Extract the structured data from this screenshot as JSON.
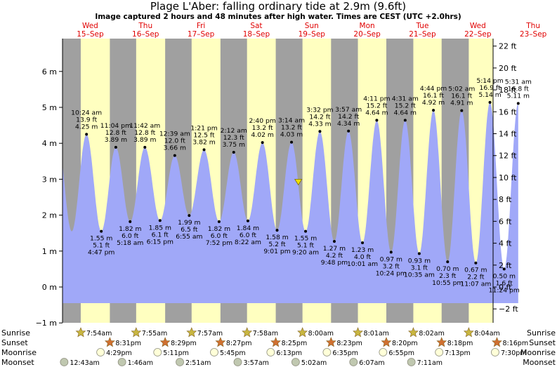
{
  "title": "Plage L'Aber: falling  ordinary tide at 2.9m (9.6ft)",
  "subtitle": "Image captured 2 hours and 48 minutes after high water. Times are CEST (UTC +2.0hrs)",
  "days": [
    {
      "dow": "Wed",
      "date": "15–Sep"
    },
    {
      "dow": "Thu",
      "date": "16–Sep"
    },
    {
      "dow": "Fri",
      "date": "17–Sep"
    },
    {
      "dow": "Sat",
      "date": "18–Sep"
    },
    {
      "dow": "Sun",
      "date": "19–Sep"
    },
    {
      "dow": "Mon",
      "date": "20–Sep"
    },
    {
      "dow": "Tue",
      "date": "21–Sep"
    },
    {
      "dow": "Wed",
      "date": "22–Sep"
    },
    {
      "dow": "Thu",
      "date": "23–Sep"
    }
  ],
  "colors": {
    "night": "#a0a0a0",
    "day": "#ffffc0",
    "tide": "#a0a8f8",
    "day_label": "#e00000",
    "sun_star": "#c8b640",
    "sunset_star": "#d07030",
    "moonrise": "#ffffd8",
    "moonset": "#c0c8b0",
    "current_marker": "#f0e000"
  },
  "chart_data": {
    "type": "area",
    "title": "Plage L'Aber: falling  ordinary tide at 2.9m (9.6ft)",
    "ylabel_left": "m",
    "ylabel_right": "ft",
    "ylim_m": [
      -1.2,
      6.8
    ],
    "yticks_m": [
      -1,
      0,
      1,
      2,
      3,
      4,
      5,
      6
    ],
    "yticks_ft": [
      -2,
      0,
      2,
      4,
      6,
      8,
      10,
      12,
      14,
      16,
      18,
      20,
      22
    ],
    "current_level_m": 2.9,
    "current_time_h": 245.3,
    "x_start_h": 0,
    "x_end_h": 262,
    "tides": [
      {
        "t_h": 10.4,
        "m": 4.25,
        "time": "10:24 am",
        "ft": "13.9 ft",
        "val": "4.25 m",
        "high": true
      },
      {
        "t_h": 16.8,
        "m": 1.55,
        "time": "4:47 pm",
        "ft": "5.1 ft",
        "val": "1.55 m",
        "high": false
      },
      {
        "t_h": 23.1,
        "m": 3.89,
        "time": "11:04 pm",
        "ft": "12.8 ft",
        "val": "3.89 m",
        "high": true
      },
      {
        "t_h": 29.3,
        "m": 1.82,
        "time": "5:18 am",
        "ft": "6.0 ft",
        "val": "1.82 m",
        "high": false
      },
      {
        "t_h": 35.7,
        "m": 3.89,
        "time": "11:42 am",
        "ft": "12.8 ft",
        "val": "3.89 m",
        "high": true
      },
      {
        "t_h": 42.25,
        "m": 1.85,
        "time": "6:15 pm",
        "ft": "6.1 ft",
        "val": "1.85 m",
        "high": false
      },
      {
        "t_h": 48.65,
        "m": 3.66,
        "time": "12:39 am",
        "ft": "12.0 ft",
        "val": "3.66 m",
        "high": true
      },
      {
        "t_h": 54.9,
        "m": 1.99,
        "time": "6:55 am",
        "ft": "6.5 ft",
        "val": "1.99 m",
        "high": false
      },
      {
        "t_h": 61.35,
        "m": 3.82,
        "time": "1:21 pm",
        "ft": "12.5 ft",
        "val": "3.82 m",
        "high": true
      },
      {
        "t_h": 67.85,
        "m": 1.82,
        "time": "7:52 pm",
        "ft": "6.0 ft",
        "val": "1.82 m",
        "high": false
      },
      {
        "t_h": 74.2,
        "m": 3.75,
        "time": "2:12 am",
        "ft": "12.3 ft",
        "val": "3.75 m",
        "high": true
      },
      {
        "t_h": 80.35,
        "m": 1.84,
        "time": "8:22 am",
        "ft": "6.0 ft",
        "val": "1.84 m",
        "high": false
      },
      {
        "t_h": 86.65,
        "m": 4.02,
        "time": "2:40 pm",
        "ft": "13.2 ft",
        "val": "4.02 m",
        "high": true
      },
      {
        "t_h": 93.0,
        "m": 1.58,
        "time": "9:01 pm",
        "ft": "5.2 ft",
        "val": "1.58 m",
        "high": false
      },
      {
        "t_h": 99.25,
        "m": 4.03,
        "time": "3:14 am",
        "ft": "13.2 ft",
        "val": "4.03 m",
        "high": true
      },
      {
        "t_h": 105.35,
        "m": 1.55,
        "time": "9:20 am",
        "ft": "5.1 ft",
        "val": "1.55 m",
        "high": false
      },
      {
        "t_h": 111.55,
        "m": 4.33,
        "time": "3:32 pm",
        "ft": "14.2 ft",
        "val": "4.33 m",
        "high": true
      },
      {
        "t_h": 117.8,
        "m": 1.27,
        "time": "9:48 pm",
        "ft": "4.2 ft",
        "val": "1.27 m",
        "high": false
      },
      {
        "t_h": 123.95,
        "m": 4.34,
        "time": "3:57 am",
        "ft": "14.2 ft",
        "val": "4.34 m",
        "high": true
      },
      {
        "t_h": 130.0,
        "m": 1.23,
        "time": "10:01 am",
        "ft": "4.0 ft",
        "val": "1.23 m",
        "high": false
      },
      {
        "t_h": 136.2,
        "m": 4.64,
        "time": "4:11 pm",
        "ft": "15.2 ft",
        "val": "4.64 m",
        "high": true
      },
      {
        "t_h": 142.4,
        "m": 0.97,
        "time": "10:24 pm",
        "ft": "3.2 ft",
        "val": "0.97 m",
        "high": false
      },
      {
        "t_h": 148.5,
        "m": 4.64,
        "time": "4:31 am",
        "ft": "15.2 ft",
        "val": "4.64 m",
        "high": true
      },
      {
        "t_h": 154.6,
        "m": 0.93,
        "time": "10:35 am",
        "ft": "3.1 ft",
        "val": "0.93 m",
        "high": false
      },
      {
        "t_h": 160.75,
        "m": 4.92,
        "time": "4:44 pm",
        "ft": "16.1 ft",
        "val": "4.92 m",
        "high": true
      },
      {
        "t_h": 166.9,
        "m": 0.7,
        "time": "10:55 pm",
        "ft": "2.3 ft",
        "val": "0.70 m",
        "high": false
      },
      {
        "t_h": 173.0,
        "m": 4.91,
        "time": "5:02 am",
        "ft": "16.1 ft",
        "val": "4.91 m",
        "high": true
      },
      {
        "t_h": 179.1,
        "m": 0.67,
        "time": "11:07 am",
        "ft": "2.2 ft",
        "val": "0.67 m",
        "high": false
      },
      {
        "t_h": 185.25,
        "m": 5.14,
        "time": "5:14 pm",
        "ft": "16.9 ft",
        "val": "5.14 m",
        "high": true
      },
      {
        "t_h": 191.4,
        "m": 0.5,
        "time": "11:24 pm",
        "ft": "1.6 ft",
        "val": "0.50 m",
        "high": false
      },
      {
        "t_h": 197.5,
        "m": 5.11,
        "time": "5:31 am",
        "ft": "16.8 ft",
        "val": "5.11 m",
        "high": true
      }
    ],
    "sunrise": [
      "7:54am",
      "7:55am",
      "7:57am",
      "7:58am",
      "8:00am",
      "8:01am",
      "8:02am",
      "8:04am"
    ],
    "sunset": [
      "8:31pm",
      "8:29pm",
      "8:27pm",
      "8:25pm",
      "8:23pm",
      "8:20pm",
      "8:18pm",
      "8:16pm"
    ],
    "moonrise": [
      "4:29pm",
      "5:11pm",
      "5:45pm",
      "6:13pm",
      "6:35pm",
      "6:55pm",
      "7:13pm",
      "7:30pm"
    ],
    "moonset": [
      "12:43am",
      "1:46am",
      "2:51am",
      "3:57am",
      "5:02am",
      "6:07am",
      "7:11am"
    ],
    "row_labels": {
      "sunrise": "Sunrise",
      "sunset": "Sunset",
      "moonrise": "Moonrise",
      "moonset": "Moonset"
    }
  }
}
